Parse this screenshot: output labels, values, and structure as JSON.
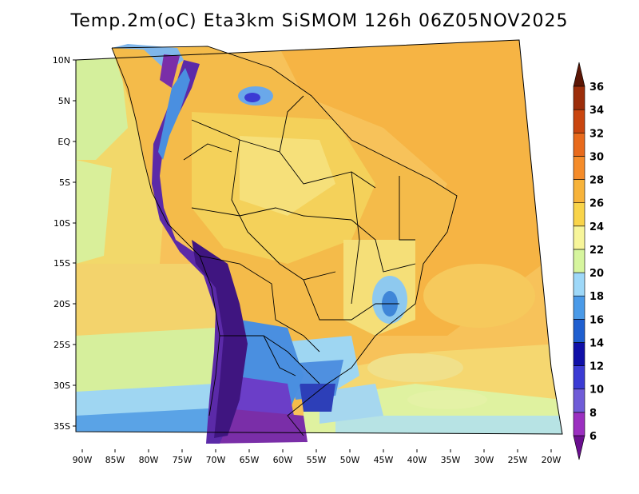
{
  "title": "Temp.2m(oC) Eta3km SiSMOM 126h 06Z05NOV2025",
  "lat_ticks": [
    "10N",
    "5N",
    "EQ",
    "5S",
    "10S",
    "15S",
    "20S",
    "25S",
    "30S",
    "35S"
  ],
  "lon_ticks": [
    "90W",
    "85W",
    "80W",
    "75W",
    "70W",
    "65W",
    "60W",
    "55W",
    "50W",
    "45W",
    "40W",
    "35W",
    "30W",
    "25W",
    "20W"
  ],
  "colorbar": {
    "labels": [
      "6",
      "8",
      "10",
      "12",
      "14",
      "16",
      "18",
      "20",
      "22",
      "24",
      "26",
      "28",
      "30",
      "32",
      "34",
      "36"
    ],
    "colors": [
      "#6a0f8f",
      "#9b2fc0",
      "#6f5cd8",
      "#3b3bd4",
      "#1010a8",
      "#1f5fd0",
      "#4a9ae8",
      "#9ed8f8",
      "#d6f59e",
      "#f7f59a",
      "#f9d44a",
      "#f7b33a",
      "#f58c2a",
      "#e86a1c",
      "#c9450f",
      "#9c2d0a",
      "#5c1605"
    ]
  },
  "palette": {
    "ocean_warm": "#f7b84a",
    "ocean_mild": "#f4d66a",
    "ocean_cool": "#d9ef9a",
    "ocean_cold": "#8ac9f0",
    "land_warm": "#f3a83a",
    "andes_cold": "#4b1e8c",
    "border": "#000000"
  }
}
